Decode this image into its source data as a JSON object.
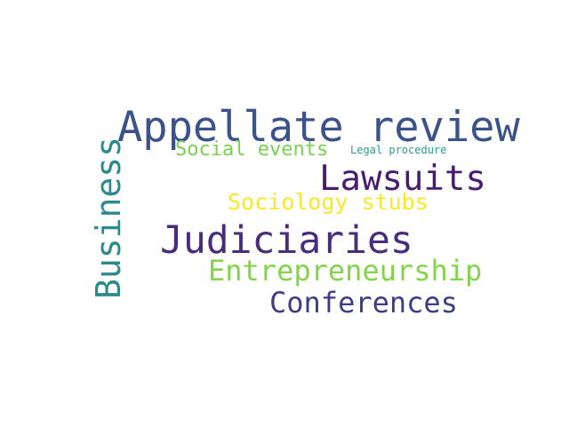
{
  "words": [
    {
      "text": "Appellate review",
      "color": "#3b528b"
    },
    {
      "text": "Social events",
      "color": "#7ad151"
    },
    {
      "text": "Legal procedure",
      "color": "#2a9d8f"
    },
    {
      "text": "Lawsuits",
      "color": "#481c6e"
    },
    {
      "text": "Sociology stubs",
      "color": "#fde725"
    },
    {
      "text": "Judiciaries",
      "color": "#472d7b"
    },
    {
      "text": "Entrepreneurship",
      "color": "#84d44b"
    },
    {
      "text": "Conferences",
      "color": "#3e3c83"
    },
    {
      "text": "Business",
      "color": "#2c8a8c"
    }
  ]
}
